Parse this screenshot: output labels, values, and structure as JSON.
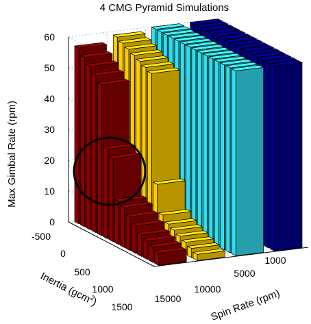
{
  "chart_data": {
    "type": "bar3d",
    "title": "4 CMG Pyramid Simulations",
    "zlabel": "Max Gimbal Rate (rpm)",
    "xlabel": "Inertia (gcm²)",
    "xlabel_main": "Inertia (gcm",
    "xlabel_sup": "2",
    "xlabel_close": ")",
    "ylabel": "Spin Rate (rpm)",
    "z_ticks": [
      "0",
      "10",
      "20",
      "30",
      "40",
      "50",
      "60"
    ],
    "z_range": [
      0,
      60
    ],
    "inertia_ticks": [
      "-500",
      "0",
      "500",
      "1000",
      "1500"
    ],
    "spin_ticks": [
      "15000",
      "10000",
      "5000",
      "1000"
    ],
    "grid": true,
    "annotation": "circle",
    "series": [
      {
        "spin_rate": 15000,
        "color": "#8b0000",
        "heights": [
          57,
          55,
          53,
          51,
          49,
          29,
          27,
          14,
          13,
          11,
          9,
          7,
          6,
          5,
          4
        ]
      },
      {
        "spin_rate": 10000,
        "color": "#ffcc00",
        "heights": [
          59,
          58,
          57,
          56,
          55,
          54,
          53,
          18,
          9,
          7,
          6,
          5,
          4,
          3,
          2
        ]
      },
      {
        "spin_rate": 5000,
        "color": "#33ddee",
        "heights": [
          60,
          60,
          60,
          60,
          60,
          60,
          60,
          60,
          60,
          60,
          60,
          60,
          60,
          60,
          60
        ]
      },
      {
        "spin_rate": 1000,
        "color": "#00008b",
        "heights": [
          60,
          60,
          60,
          60,
          60,
          60,
          60,
          60,
          60,
          60,
          60,
          60,
          60,
          60,
          60
        ]
      }
    ]
  }
}
